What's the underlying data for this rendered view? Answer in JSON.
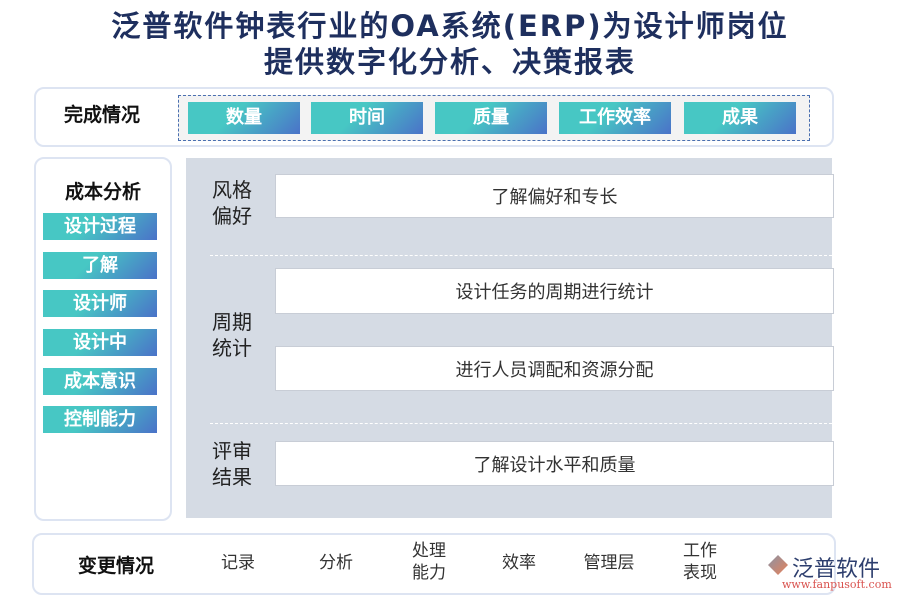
{
  "title": {
    "line1": "泛普软件钟表行业的OA系统(ERP)为设计师岗位",
    "line2": "提供数字化分析、决策报表"
  },
  "completion": {
    "label": "完成情况",
    "items": [
      "数量",
      "时间",
      "质量",
      "工作效率",
      "成果"
    ]
  },
  "cost": {
    "label": "成本分析",
    "items": [
      "设计过程",
      "了解",
      "设计师",
      "设计中",
      "成本意识",
      "控制能力"
    ]
  },
  "groups": [
    {
      "name": "风格偏好",
      "rows": [
        "了解偏好和专长"
      ]
    },
    {
      "name": "周期统计",
      "rows": [
        "设计任务的周期进行统计",
        "进行人员调配和资源分配"
      ]
    },
    {
      "name": "评审结果",
      "rows": [
        "了解设计水平和质量"
      ]
    }
  ],
  "changes": {
    "label": "变更情况",
    "items": [
      "记录",
      "分析",
      "处理能力",
      "效率",
      "管理层",
      "工作表现"
    ]
  },
  "logo": {
    "name": "泛普软件",
    "url": "www.fanpusoft.com"
  },
  "colors": {
    "title": "#1e2f5e",
    "btn_start": "#47c7c4",
    "btn_end": "#4a72c8",
    "panel_bg": "#d5dbe4"
  }
}
